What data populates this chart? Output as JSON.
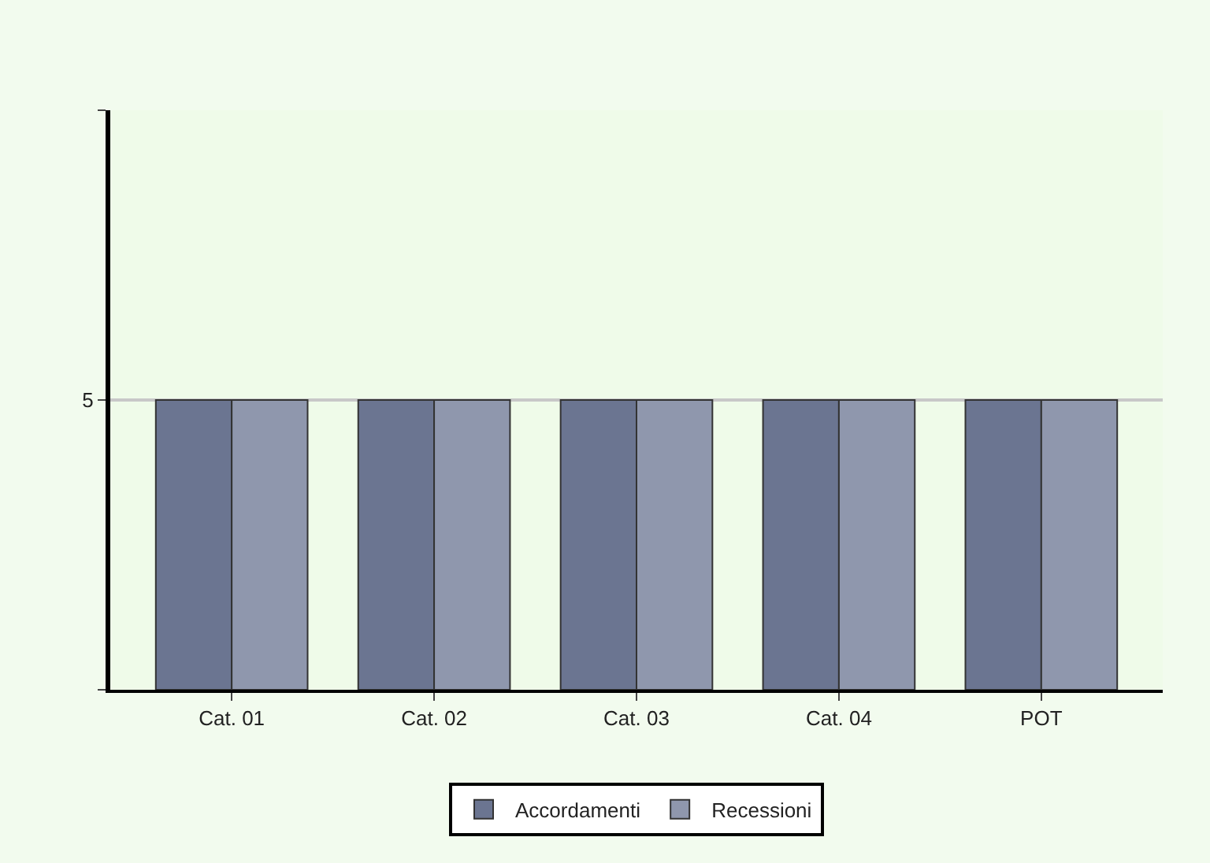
{
  "chart_data": {
    "type": "bar",
    "categories": [
      "Cat. 01",
      "Cat. 02",
      "Cat. 03",
      "Cat. 04",
      "POT"
    ],
    "series": [
      {
        "name": "Accordamenti",
        "color": "#6b7591",
        "values": [
          5,
          5,
          5,
          5,
          5
        ]
      },
      {
        "name": "Recessioni",
        "color": "#8f97ad",
        "values": [
          5,
          5,
          5,
          5,
          5
        ]
      }
    ],
    "ylim": [
      0,
      10
    ],
    "yticks": [
      {
        "value": 0,
        "label": null
      },
      5,
      {
        "value": 10,
        "label": null
      }
    ],
    "legend": "bottom",
    "grid": "y"
  }
}
